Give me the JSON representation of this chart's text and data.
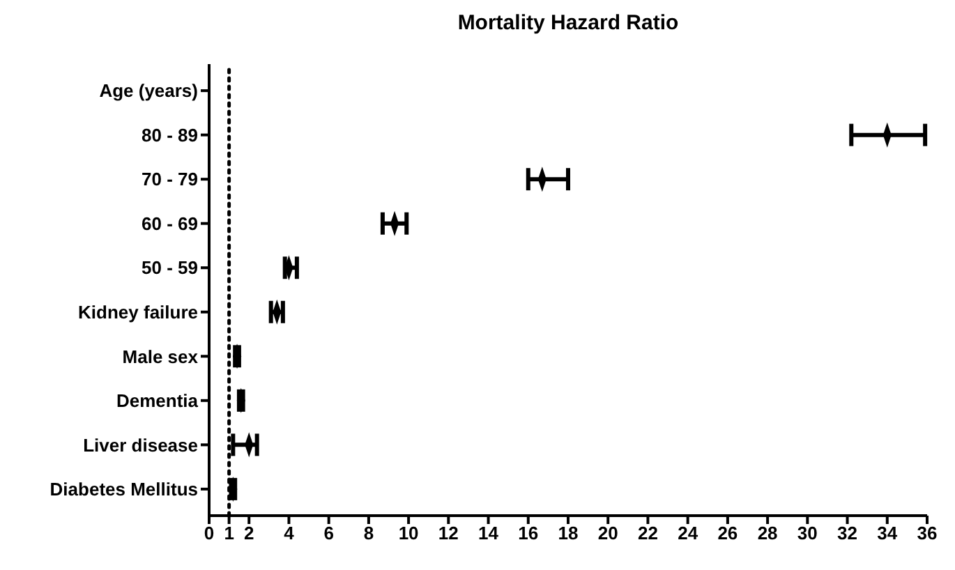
{
  "chart_data": {
    "type": "scatter",
    "title": "Mortality Hazard Ratio",
    "orientation": "horizontal",
    "categories": [
      "Age (years)",
      "80 - 89",
      "70 - 79",
      "60 - 69",
      "50 - 59",
      "Kidney failure",
      "Male sex ",
      "Dementia",
      "Liver disease",
      "Diabetes Mellitus"
    ],
    "values": [
      null,
      34,
      16.7,
      9.3,
      4.0,
      3.4,
      1.4,
      1.6,
      2.0,
      1.2
    ],
    "errors": [
      null,
      [
        32.2,
        35.9
      ],
      [
        16.0,
        18.0
      ],
      [
        8.7,
        9.9
      ],
      [
        3.8,
        4.4
      ],
      [
        3.1,
        3.7
      ],
      [
        1.3,
        1.5
      ],
      [
        1.5,
        1.7
      ],
      [
        1.2,
        2.4
      ],
      [
        1.1,
        1.3
      ]
    ],
    "color": "#000000",
    "xlim": [
      0,
      36
    ],
    "xticks": [
      0,
      1,
      2,
      4,
      6,
      8,
      10,
      12,
      14,
      16,
      18,
      20,
      22,
      24,
      26,
      28,
      30,
      32,
      34,
      36
    ],
    "ref_lines": [
      {
        "axis": "x",
        "value": 1,
        "line_style": "dotted",
        "color": "#000000"
      }
    ],
    "grid": false,
    "legend": false
  }
}
